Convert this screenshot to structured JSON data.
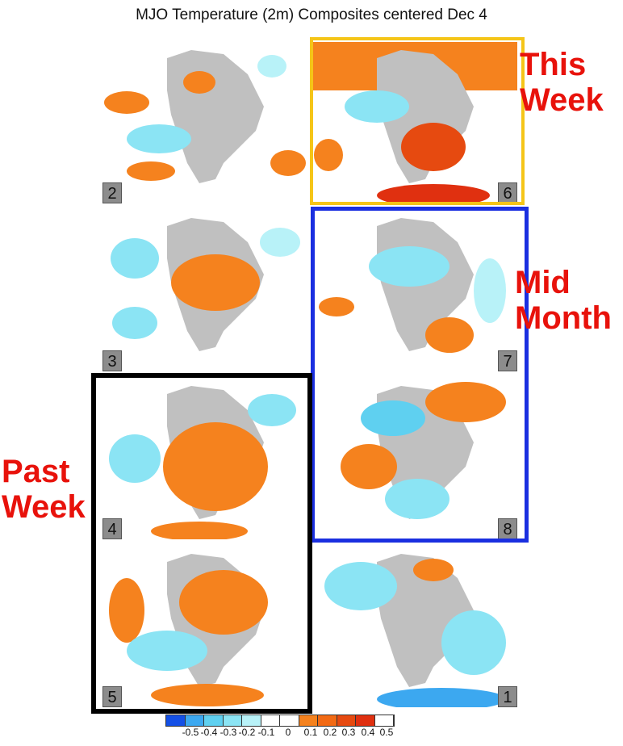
{
  "title": "MJO Temperature (2m) Composites centered Dec  4",
  "panels": [
    {
      "label": "2"
    },
    {
      "label": "6"
    },
    {
      "label": "3"
    },
    {
      "label": "7"
    },
    {
      "label": "4"
    },
    {
      "label": "8"
    },
    {
      "label": "5"
    },
    {
      "label": "1"
    }
  ],
  "annotations": {
    "this_week": {
      "line1": "This",
      "line2": "Week",
      "color": "#f5c518"
    },
    "mid_month": {
      "line1": "Mid",
      "line2": "Month",
      "color": "#1a2fe0"
    },
    "past_week": {
      "line1": "Past",
      "line2": "Week",
      "color": "#000000"
    }
  },
  "colorbar": {
    "colors": [
      "#1450e6",
      "#3ca8f0",
      "#5fd0f0",
      "#8be4f4",
      "#b8f2f8",
      "#ffffff",
      "#ffffff",
      "#f5821e",
      "#f26a14",
      "#e64a10",
      "#e03010",
      "#ffffff"
    ],
    "ticks": [
      "-0.5",
      "-0.4",
      "-0.3",
      "-0.2",
      "-0.1",
      "0",
      "0.1",
      "0.2",
      "0.3",
      "0.4",
      "0.5"
    ]
  }
}
